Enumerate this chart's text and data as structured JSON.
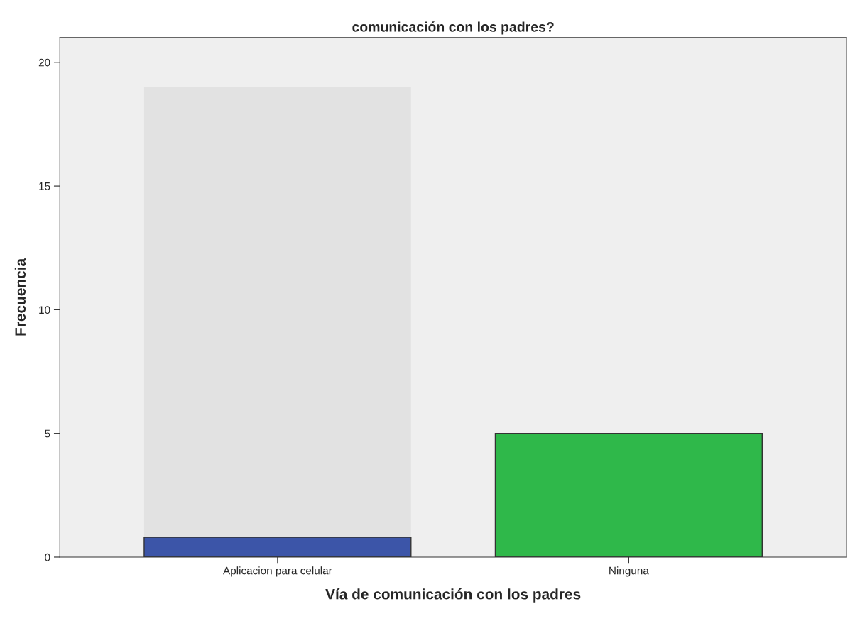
{
  "chart_data": {
    "type": "bar",
    "title": "comunicación con los padres?",
    "xlabel": "Vía de comunicación con los padres",
    "ylabel": "Frecuencia",
    "categories": [
      "Aplicacion para celular",
      "Ninguna"
    ],
    "stacked": true,
    "series": [
      {
        "colors": [
          "#3c55a8",
          "#2fb84a"
        ],
        "values": [
          0.8,
          5
        ]
      },
      {
        "colors": [
          "#e2e2e2",
          "#e2e2e2"
        ],
        "values": [
          18.2,
          null
        ]
      }
    ],
    "ylim": [
      0,
      21
    ],
    "yticks": [
      0,
      5,
      10,
      15,
      20
    ],
    "grid": false,
    "legend": false
  }
}
